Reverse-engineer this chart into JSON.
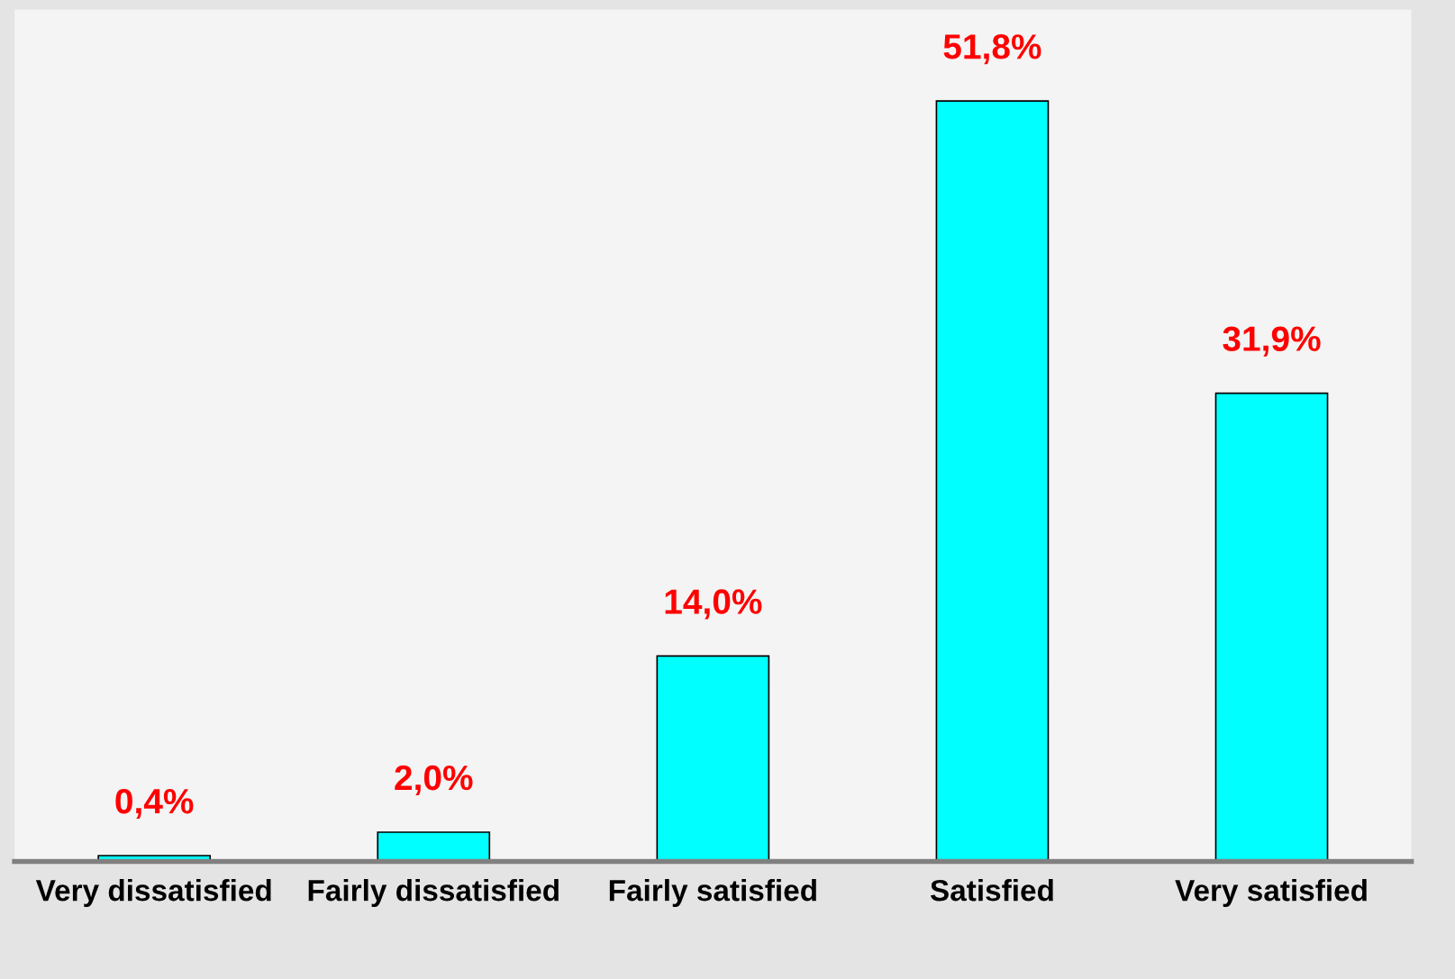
{
  "chart_data": {
    "type": "bar",
    "categories": [
      "Very dissatisfied",
      "Fairly dissatisfied",
      "Fairly satisfied",
      "Satisfied",
      "Very satisfied"
    ],
    "values": [
      0.4,
      2.0,
      14.0,
      51.8,
      31.9
    ],
    "value_labels": [
      "0,4%",
      "2,0%",
      "14,0%",
      "51,8%",
      "31,9%"
    ],
    "color": "#00ffff",
    "grid": false,
    "legend": false
  }
}
